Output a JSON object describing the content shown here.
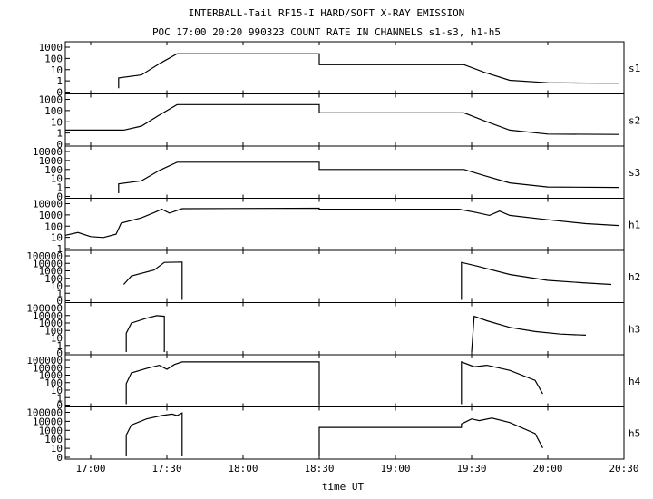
{
  "chart_data": {
    "type": "line",
    "title": "INTERBALL-Tail RF15-I HARD/SOFT X-RAY EMISSION",
    "subtitle": "POC 17:00 20:20 990323  COUNT RATE IN CHANNELS s1-s3, h1-h5",
    "xlabel": "time UT",
    "x_ticks": [
      "17:00",
      "17:30",
      "18:00",
      "18:30",
      "19:00",
      "19:30",
      "20:00",
      "20:30"
    ],
    "xlim": [
      "16:50",
      "20:30"
    ],
    "y_scale": "log",
    "grid": false,
    "panels": [
      {
        "name": "s1",
        "y_ticks": [
          "1000",
          "100",
          "10",
          "1",
          "0"
        ],
        "ylim": [
          0.3,
          1000
        ],
        "segments": [
          [
            [
              "17:11",
              0.5
            ],
            [
              "17:11",
              3
            ],
            [
              "17:20",
              5
            ],
            [
              "17:27",
              35
            ],
            [
              "17:34",
              200
            ],
            [
              "18:30",
              200
            ],
            [
              "18:30",
              30
            ],
            [
              "19:27",
              30
            ],
            [
              "19:35",
              8
            ],
            [
              "19:45",
              2
            ],
            [
              "20:00",
              1.3
            ],
            [
              "20:20",
              1.2
            ],
            [
              "20:28",
              1.2
            ]
          ]
        ]
      },
      {
        "name": "s2",
        "y_ticks": [
          "1000",
          "100",
          "10",
          "1",
          "0"
        ],
        "ylim": [
          0.3,
          1000
        ],
        "segments": [
          [
            [
              "16:50",
              3
            ],
            [
              "17:13",
              3
            ],
            [
              "17:20",
              6
            ],
            [
              "17:27",
              40
            ],
            [
              "17:34",
              250
            ],
            [
              "18:30",
              250
            ],
            [
              "18:30",
              60
            ],
            [
              "19:27",
              60
            ],
            [
              "19:35",
              15
            ],
            [
              "19:45",
              3
            ],
            [
              "20:00",
              1.5
            ],
            [
              "20:28",
              1.4
            ]
          ]
        ]
      },
      {
        "name": "s3",
        "y_ticks": [
          "10000",
          "1000",
          "100",
          "10",
          "1",
          "0"
        ],
        "ylim": [
          0.3,
          10000
        ],
        "segments": [
          [
            [
              "17:11",
              0.5
            ],
            [
              "17:11",
              4
            ],
            [
              "17:20",
              8
            ],
            [
              "17:27",
              80
            ],
            [
              "17:34",
              500
            ],
            [
              "18:30",
              500
            ],
            [
              "18:30",
              100
            ],
            [
              "19:27",
              100
            ],
            [
              "19:35",
              25
            ],
            [
              "19:45",
              5
            ],
            [
              "20:00",
              2
            ],
            [
              "20:28",
              1.8
            ]
          ]
        ]
      },
      {
        "name": "h1",
        "y_ticks": [
          "10000",
          "1000",
          "100",
          "10",
          "1"
        ],
        "ylim": [
          0.6,
          10000
        ],
        "segments": [
          [
            [
              "16:50",
              8
            ],
            [
              "16:55",
              14
            ],
            [
              "17:00",
              6
            ],
            [
              "17:05",
              5
            ],
            [
              "17:10",
              10
            ],
            [
              "17:12",
              100
            ],
            [
              "17:20",
              300
            ],
            [
              "17:25",
              900
            ],
            [
              "17:28",
              1800
            ],
            [
              "17:31",
              800
            ],
            [
              "17:36",
              2000
            ],
            [
              "18:30",
              2200
            ],
            [
              "18:30",
              1800
            ],
            [
              "19:25",
              1800
            ],
            [
              "19:32",
              900
            ],
            [
              "19:37",
              500
            ],
            [
              "19:41",
              1200
            ],
            [
              "19:45",
              500
            ],
            [
              "20:00",
              200
            ],
            [
              "20:15",
              90
            ],
            [
              "20:28",
              60
            ]
          ]
        ]
      },
      {
        "name": "h2",
        "y_ticks": [
          "100000",
          "10000",
          "1000",
          "100",
          "10",
          "1",
          "0"
        ],
        "ylim": [
          0.3,
          100000
        ],
        "segments": [
          [
            [
              "17:13",
              20
            ],
            [
              "17:16",
              200
            ],
            [
              "17:25",
              1000
            ],
            [
              "17:29",
              8000
            ],
            [
              "17:36",
              9000
            ],
            [
              "17:36",
              0.3
            ]
          ],
          [
            [
              "19:26",
              0.3
            ],
            [
              "19:26",
              8000
            ],
            [
              "19:32",
              3000
            ],
            [
              "19:45",
              300
            ],
            [
              "20:00",
              60
            ],
            [
              "20:15",
              30
            ],
            [
              "20:25",
              20
            ]
          ]
        ]
      },
      {
        "name": "h3",
        "y_ticks": [
          "100000",
          "10000",
          "1000",
          "100",
          "10",
          "1",
          "0"
        ],
        "ylim": [
          0.3,
          100000
        ],
        "segments": [
          [
            [
              "17:14",
              0.3
            ],
            [
              "17:14",
              50
            ],
            [
              "17:16",
              800
            ],
            [
              "17:22",
              3000
            ],
            [
              "17:26",
              6000
            ],
            [
              "17:29",
              5000
            ],
            [
              "17:29",
              0.3
            ]
          ],
          [
            [
              "19:30",
              0.3
            ],
            [
              "19:31",
              5000
            ],
            [
              "19:36",
              1500
            ],
            [
              "19:45",
              250
            ],
            [
              "19:55",
              80
            ],
            [
              "20:05",
              40
            ],
            [
              "20:15",
              30
            ]
          ]
        ]
      },
      {
        "name": "h4",
        "y_ticks": [
          "100000",
          "10000",
          "1000",
          "100",
          "10",
          "1",
          "0"
        ],
        "ylim": [
          0.3,
          100000
        ],
        "segments": [
          [
            [
              "17:14",
              0.3
            ],
            [
              "17:14",
              80
            ],
            [
              "17:16",
              1500
            ],
            [
              "17:22",
              5000
            ],
            [
              "17:27",
              12000
            ],
            [
              "17:30",
              4000
            ],
            [
              "17:33",
              15000
            ],
            [
              "17:36",
              30000
            ],
            [
              "18:30",
              30000
            ],
            [
              "18:30",
              0.3
            ]
          ],
          [
            [
              "19:26",
              0.3
            ],
            [
              "19:26",
              30000
            ],
            [
              "19:31",
              8000
            ],
            [
              "19:36",
              12000
            ],
            [
              "19:45",
              3000
            ],
            [
              "19:55",
              200
            ],
            [
              "19:58",
              5
            ]
          ]
        ]
      },
      {
        "name": "h5",
        "y_ticks": [
          "100000",
          "10000",
          "1000",
          "100",
          "10",
          "0"
        ],
        "ylim": [
          0.3,
          100000
        ],
        "segments": [
          [
            [
              "17:14",
              0.3
            ],
            [
              "17:14",
              100
            ],
            [
              "17:16",
              1500
            ],
            [
              "17:22",
              8000
            ],
            [
              "17:28",
              20000
            ],
            [
              "17:32",
              30000
            ],
            [
              "17:34",
              20000
            ],
            [
              "17:36",
              40000
            ],
            [
              "17:36",
              0.3
            ]
          ],
          [
            [
              "18:30",
              0.3
            ],
            [
              "18:30",
              800
            ],
            [
              "19:26",
              800
            ],
            [
              "19:26",
              2000
            ],
            [
              "19:30",
              8000
            ],
            [
              "19:33",
              5000
            ],
            [
              "19:38",
              10000
            ],
            [
              "19:45",
              3000
            ],
            [
              "19:55",
              150
            ],
            [
              "19:58",
              3
            ]
          ]
        ]
      }
    ]
  }
}
